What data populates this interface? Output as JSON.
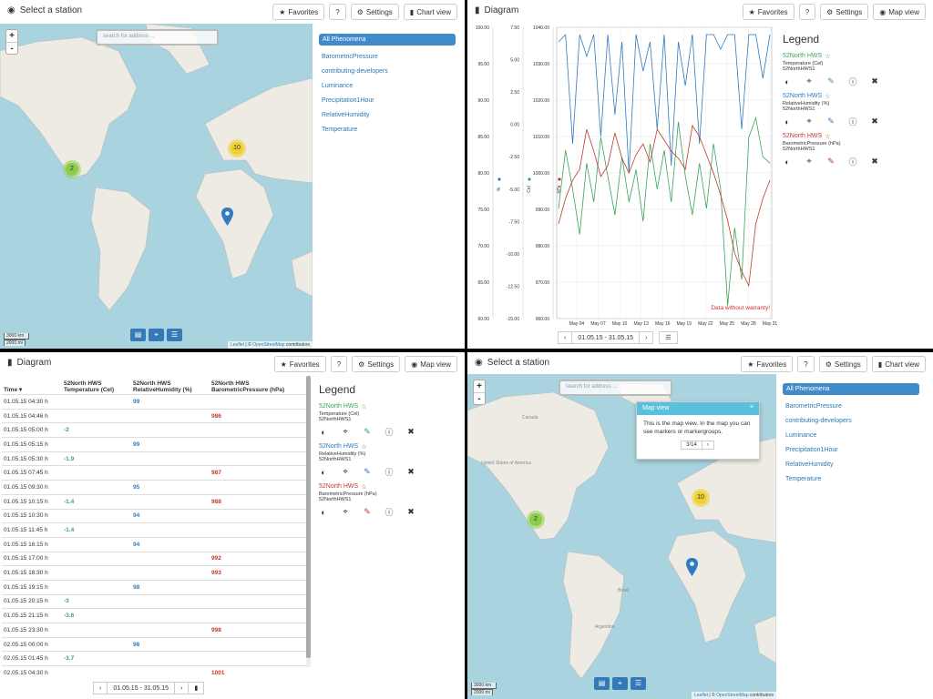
{
  "colors": {
    "blue": "#2f7bbf",
    "green": "#3aa35b",
    "red": "#c0392b",
    "accent": "#428bca"
  },
  "q1": {
    "title": "Select a station",
    "buttons": {
      "favorites": "Favorites",
      "help": "?",
      "settings": "Settings",
      "view": "Chart view"
    },
    "search_placeholder": "search for address ...",
    "zoom_in": "+",
    "zoom_out": "-",
    "clusters": [
      {
        "count": "2",
        "color": "green"
      },
      {
        "count": "10",
        "color": "yellow"
      }
    ],
    "scale": [
      "3000 km",
      "2000 mi"
    ],
    "attribution_link1": "Leaflet",
    "attribution_sep": " | © ",
    "attribution_link2": "OpenStreetMap",
    "attribution_tail": " contributors"
  },
  "phenomena": {
    "all": "All Phenomena",
    "items": [
      "BarometricPressure",
      "contributing-developers",
      "Luminance",
      "Precipitation1Hour",
      "RelativeHumidity",
      "Temperature"
    ]
  },
  "q2": {
    "title": "Diagram",
    "buttons": {
      "favorites": "Favorites",
      "help": "?",
      "settings": "Settings",
      "view": "Map view"
    },
    "axis_units": [
      "%",
      "Cel",
      "hPa"
    ],
    "warranty": "Data without warranty!",
    "range": "01.05.15 - 31.05.15"
  },
  "chart_data": {
    "type": "line",
    "x_ticks": [
      "May 04",
      "May 07",
      "May 10",
      "May 13",
      "May 16",
      "May 19",
      "May 22",
      "May 25",
      "May 28",
      "May 31"
    ],
    "axes": [
      {
        "unit": "%",
        "ticks": [
          "100.00",
          "95.00",
          "90.00",
          "85.00",
          "80.00",
          "75.00",
          "70.00",
          "65.00",
          "60.00"
        ],
        "ylim": [
          60,
          100
        ]
      },
      {
        "unit": "Cel",
        "ticks": [
          "7.50",
          "5.00",
          "2.50",
          "0.00",
          "-2.50",
          "-5.00",
          "-7.50",
          "-10.00",
          "-12.50",
          "-15.00"
        ],
        "ylim": [
          -15,
          7.5
        ]
      },
      {
        "unit": "hPa",
        "ticks": [
          "1040.00",
          "1030.00",
          "1020.00",
          "1010.00",
          "1000.00",
          "990.00",
          "980.00",
          "970.00",
          "960.00"
        ],
        "ylim": [
          960,
          1040
        ]
      }
    ],
    "series": [
      {
        "name": "52North HWS",
        "phenomenon": "RelativeHumidity (%)",
        "color": "#2f7bbf",
        "axis": "%",
        "values": [
          98,
          99,
          84,
          99,
          96,
          99,
          85,
          99,
          88,
          98,
          80,
          99,
          94,
          98,
          86,
          99,
          81,
          98,
          92,
          99,
          84,
          99,
          99,
          97,
          99,
          99,
          86,
          99,
          99,
          93,
          99
        ]
      },
      {
        "name": "52North HWS",
        "phenomenon": "Temperature (Cel)",
        "color": "#3aa35b",
        "axis": "Cel",
        "values": [
          -6.5,
          -2,
          -5,
          -8.5,
          -3,
          -6,
          -1,
          -4,
          -7,
          -2.5,
          -6,
          -3.5,
          -7.5,
          -1.5,
          -5,
          -2,
          -6,
          0.2,
          -4,
          -7,
          -3,
          -6.5,
          -1.5,
          -5,
          -14,
          -8,
          -12,
          -1,
          0.5,
          -2.5,
          -3
        ]
      },
      {
        "name": "52North HWS",
        "phenomenon": "BarometricPressure (hPa)",
        "color": "#c0392b",
        "axis": "hPa",
        "values": [
          986,
          993,
          998,
          1001,
          1012,
          1006,
          999,
          1002,
          1011,
          1004,
          1000,
          1005,
          1008,
          1003,
          1012,
          1009,
          1006,
          1004,
          1001,
          1013,
          1010,
          1005,
          1000,
          994,
          987,
          978,
          973,
          969,
          986,
          993,
          998
        ]
      }
    ]
  },
  "legend": {
    "title": "Legend",
    "items": [
      {
        "name": "52North HWS",
        "phenomenon": "Temperature (Cel)",
        "station": "52NorthHWS1",
        "color": "green"
      },
      {
        "name": "52North HWS",
        "phenomenon": "RelativeHumidity (%)",
        "station": "52NorthHWS1",
        "color": "blue"
      },
      {
        "name": "52North HWS",
        "phenomenon": "BarometricPressure (hPa)",
        "station": "52NorthHWS1",
        "color": "red"
      }
    ]
  },
  "q3": {
    "title": "Diagram",
    "buttons": {
      "favorites": "Favorites",
      "help": "?",
      "settings": "Settings",
      "view": "Map view"
    },
    "columns": [
      "Time ▾",
      "52North HWS Temperature (Cel)",
      "52North HWS RelativeHumidity (%)",
      "52North HWS BarometricPressure (hPa)"
    ],
    "rows": [
      [
        "01.05.15 04:30 h",
        "",
        "99",
        ""
      ],
      [
        "01.05.15 04:46 h",
        "",
        "",
        "986"
      ],
      [
        "01.05.15 05:00 h",
        "-2",
        "",
        ""
      ],
      [
        "01.05.15 05:15 h",
        "",
        "99",
        ""
      ],
      [
        "01.05.15 05:30 h",
        "-1.9",
        "",
        ""
      ],
      [
        "01.05.15 07:45 h",
        "",
        "",
        "987"
      ],
      [
        "01.05.15 09:30 h",
        "",
        "95",
        ""
      ],
      [
        "01.05.15 10:15 h",
        "-1.4",
        "",
        "988"
      ],
      [
        "01.05.15 10:30 h",
        "",
        "94",
        ""
      ],
      [
        "01.05.15 11:45 h",
        "-1.4",
        "",
        ""
      ],
      [
        "01.05.15 16:15 h",
        "",
        "94",
        ""
      ],
      [
        "01.05.15 17:00 h",
        "",
        "",
        "992"
      ],
      [
        "01.05.15 18:30 h",
        "",
        "",
        "993"
      ],
      [
        "01.05.15 19:15 h",
        "",
        "98",
        ""
      ],
      [
        "01.05.15 20:15 h",
        "-3",
        "",
        ""
      ],
      [
        "01.05.15 21:15 h",
        "-3.6",
        "",
        ""
      ],
      [
        "01.05.15 23:30 h",
        "",
        "",
        "998"
      ],
      [
        "02.05.15 00:00 h",
        "",
        "98",
        ""
      ],
      [
        "02.05.15 01:45 h",
        "-3.7",
        "",
        ""
      ],
      [
        "02.05.15 04:30 h",
        "",
        "",
        "1001"
      ]
    ],
    "range": "01.05.15 - 31.05.15"
  },
  "q4": {
    "title": "Select a station",
    "buttons": {
      "favorites": "Favorites",
      "help": "?",
      "settings": "Settings",
      "view": "Chart view"
    },
    "search_placeholder": "search for address ...",
    "tour_title": "Map view",
    "tour_close": "×",
    "tour_text": "This is the map view. In the map you can see markers or markergroups.",
    "tour_step": "3/14",
    "tour_next": "›",
    "map_labels": [
      "Brasil",
      "Argentina",
      "United States of America",
      "Canada"
    ],
    "clusters": [
      {
        "count": "2"
      },
      {
        "count": "10"
      }
    ],
    "scale": [
      "3000 km",
      "2000 mi"
    ]
  }
}
